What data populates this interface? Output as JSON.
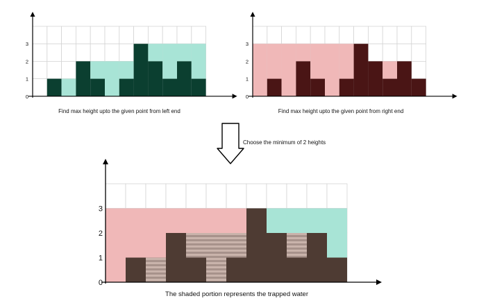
{
  "colors": {
    "grid": "#d4d4d4",
    "axis": "#000000",
    "left_fill": "#a8e4d6",
    "left_bar": "#0b3f30",
    "right_fill": "#f0b8b8",
    "right_bar": "#4a1515",
    "result_bar": "#4e3b33",
    "water_light": "#c9b3ab",
    "water_dark": "#a7928b"
  },
  "icons": {
    "flow_arrow": "down-arrow-outline-icon"
  },
  "panels": {
    "left": {
      "caption": "Find max height upto the given point from left end",
      "y_ticks": [
        "0",
        "1",
        "2",
        "3"
      ]
    },
    "right": {
      "caption": "Find max height upto the given point from right end",
      "y_ticks": [
        "0",
        "1",
        "2",
        "3"
      ]
    },
    "result": {
      "caption": "The shaded portion represents the trapped water",
      "y_ticks": [
        "0",
        "1",
        "2",
        "3"
      ]
    }
  },
  "arrow_label": "Choose the minimum of 2 heights",
  "chart_data": {
    "type": "bar",
    "heights": [
      0,
      1,
      0,
      2,
      1,
      0,
      1,
      3,
      2,
      1,
      2,
      1
    ],
    "left_max": [
      0,
      1,
      1,
      2,
      2,
      2,
      2,
      3,
      3,
      3,
      3,
      3
    ],
    "right_max": [
      3,
      3,
      3,
      3,
      3,
      3,
      3,
      3,
      2,
      2,
      2,
      1
    ],
    "min_of_max": [
      0,
      1,
      1,
      2,
      2,
      2,
      2,
      3,
      2,
      2,
      2,
      1
    ],
    "trapped_water": [
      0,
      0,
      1,
      0,
      1,
      2,
      1,
      0,
      0,
      1,
      0,
      0
    ],
    "ylim": [
      0,
      4
    ]
  }
}
